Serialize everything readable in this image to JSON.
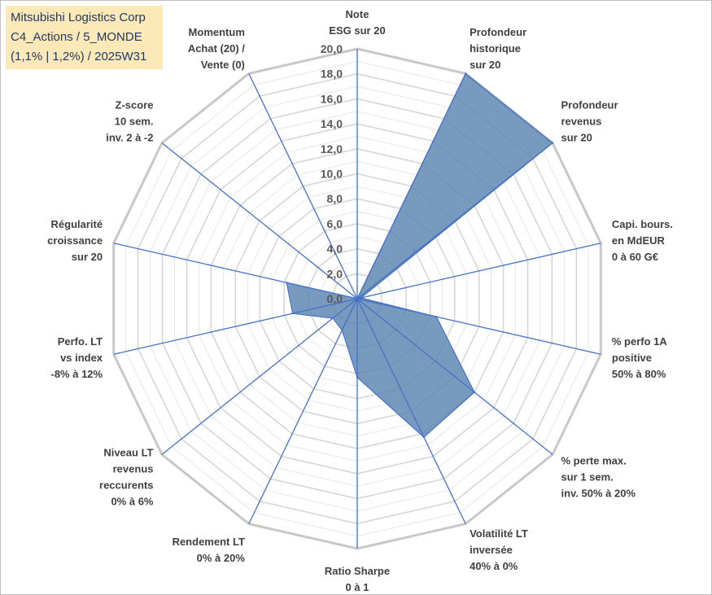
{
  "title": {
    "lines": [
      "Mitsubishi Logistics Corp",
      "C4_Actions / 5_MONDE",
      "(1,1% | 1,2%) / 2025W31"
    ]
  },
  "colors": {
    "fill": "#5b84b1",
    "stroke": "#4472c4",
    "grid": "#d0d0d0",
    "spoke": "#4472c4",
    "title_bg": "#fde9b7",
    "title_text": "#1f3864"
  },
  "chart_data": {
    "type": "radar",
    "rmin": 0,
    "rmax": 20,
    "tick_step": 2,
    "tick_labels": [
      "0,0",
      "2,0",
      "4,0",
      "6,0",
      "8,0",
      "10,0",
      "12,0",
      "14,0",
      "16,0",
      "18,0",
      "20,0"
    ],
    "axes": [
      [
        "Note",
        "ESG sur 20"
      ],
      [
        "Profondeur",
        "historique",
        "sur 20"
      ],
      [
        "Profondeur",
        "revenus",
        "sur 20"
      ],
      [
        "Capi. bours.",
        "en MdEUR",
        "0 à 60 G€"
      ],
      [
        "% perfo 1A",
        "positive",
        "50% à 80%"
      ],
      [
        "% perte max.",
        "sur 1 sem.",
        "inv. 50% à 20%"
      ],
      [
        "Volatilité LT",
        "inversée",
        "40% à 0%"
      ],
      [
        "Ratio Sharpe",
        "0 à 1"
      ],
      [
        "Rendement LT",
        "0% à 20%"
      ],
      [
        "Niveau LT",
        "revenus",
        "reccurents",
        "0% à 6%"
      ],
      [
        "Perfo. LT",
        "vs index",
        "-8% à 12%"
      ],
      [
        "Régularité",
        "croissance",
        "sur 20"
      ],
      [
        "Z-score",
        "10 sem.",
        "inv. 2 à -2"
      ],
      [
        "Momentum",
        "Achat (20) /",
        "Vente (0)"
      ]
    ],
    "values": [
      0,
      20,
      20,
      0.3,
      6.5,
      12,
      12.3,
      6.3,
      2.8,
      2.5,
      5.3,
      5.8,
      0,
      0
    ]
  }
}
